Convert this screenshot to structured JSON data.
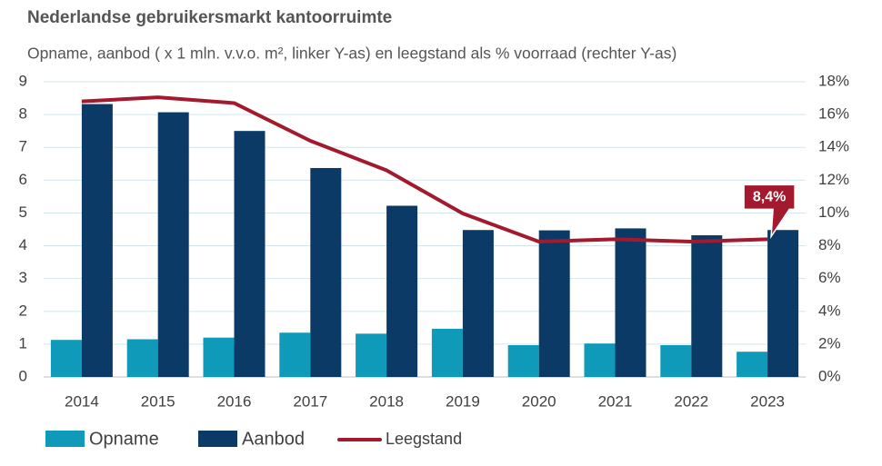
{
  "chart_data": {
    "type": "bar",
    "title": "Nederlandse gebruikersmarkt kantoorruimte",
    "subtitle": "Opname, aanbod ( x 1 mln. v.v.o. m², linker Y-as) en leegstand als % voorraad (rechter Y-as)",
    "categories": [
      "2014",
      "2015",
      "2016",
      "2017",
      "2018",
      "2019",
      "2020",
      "2021",
      "2022",
      "2023"
    ],
    "series": [
      {
        "name": "Opname",
        "type": "bar",
        "color": "#0e9ab8",
        "values": [
          1.13,
          1.15,
          1.2,
          1.35,
          1.32,
          1.47,
          0.97,
          1.02,
          0.97,
          0.77
        ]
      },
      {
        "name": "Aanbod",
        "type": "bar",
        "color": "#0b3a66",
        "values": [
          8.32,
          8.07,
          7.5,
          6.37,
          5.22,
          4.48,
          4.47,
          4.53,
          4.32,
          4.48
        ]
      },
      {
        "name": "Leegstand",
        "type": "line",
        "axis": "y2",
        "color": "#a3192e",
        "values": [
          16.8,
          17.05,
          16.7,
          14.4,
          12.6,
          9.97,
          8.25,
          8.4,
          8.25,
          8.4
        ],
        "value_labels": [
          null,
          null,
          null,
          null,
          null,
          null,
          null,
          null,
          null,
          "8,4%"
        ]
      }
    ],
    "ylim": [
      0,
      9
    ],
    "yticks": [
      0,
      1,
      2,
      3,
      4,
      5,
      6,
      7,
      8,
      9
    ],
    "y2lim": [
      0,
      18
    ],
    "y2ticks": [
      {
        "value": 0,
        "label": "0%"
      },
      {
        "value": 2,
        "label": "2%"
      },
      {
        "value": 4,
        "label": "4%"
      },
      {
        "value": 6,
        "label": "6%"
      },
      {
        "value": 8,
        "label": "8%"
      },
      {
        "value": 10,
        "label": "10%"
      },
      {
        "value": 12,
        "label": "12%"
      },
      {
        "value": 14,
        "label": "14%"
      },
      {
        "value": 16,
        "label": "16%"
      },
      {
        "value": 18,
        "label": "18%"
      }
    ],
    "grid": true,
    "legend": "bottom-left"
  }
}
